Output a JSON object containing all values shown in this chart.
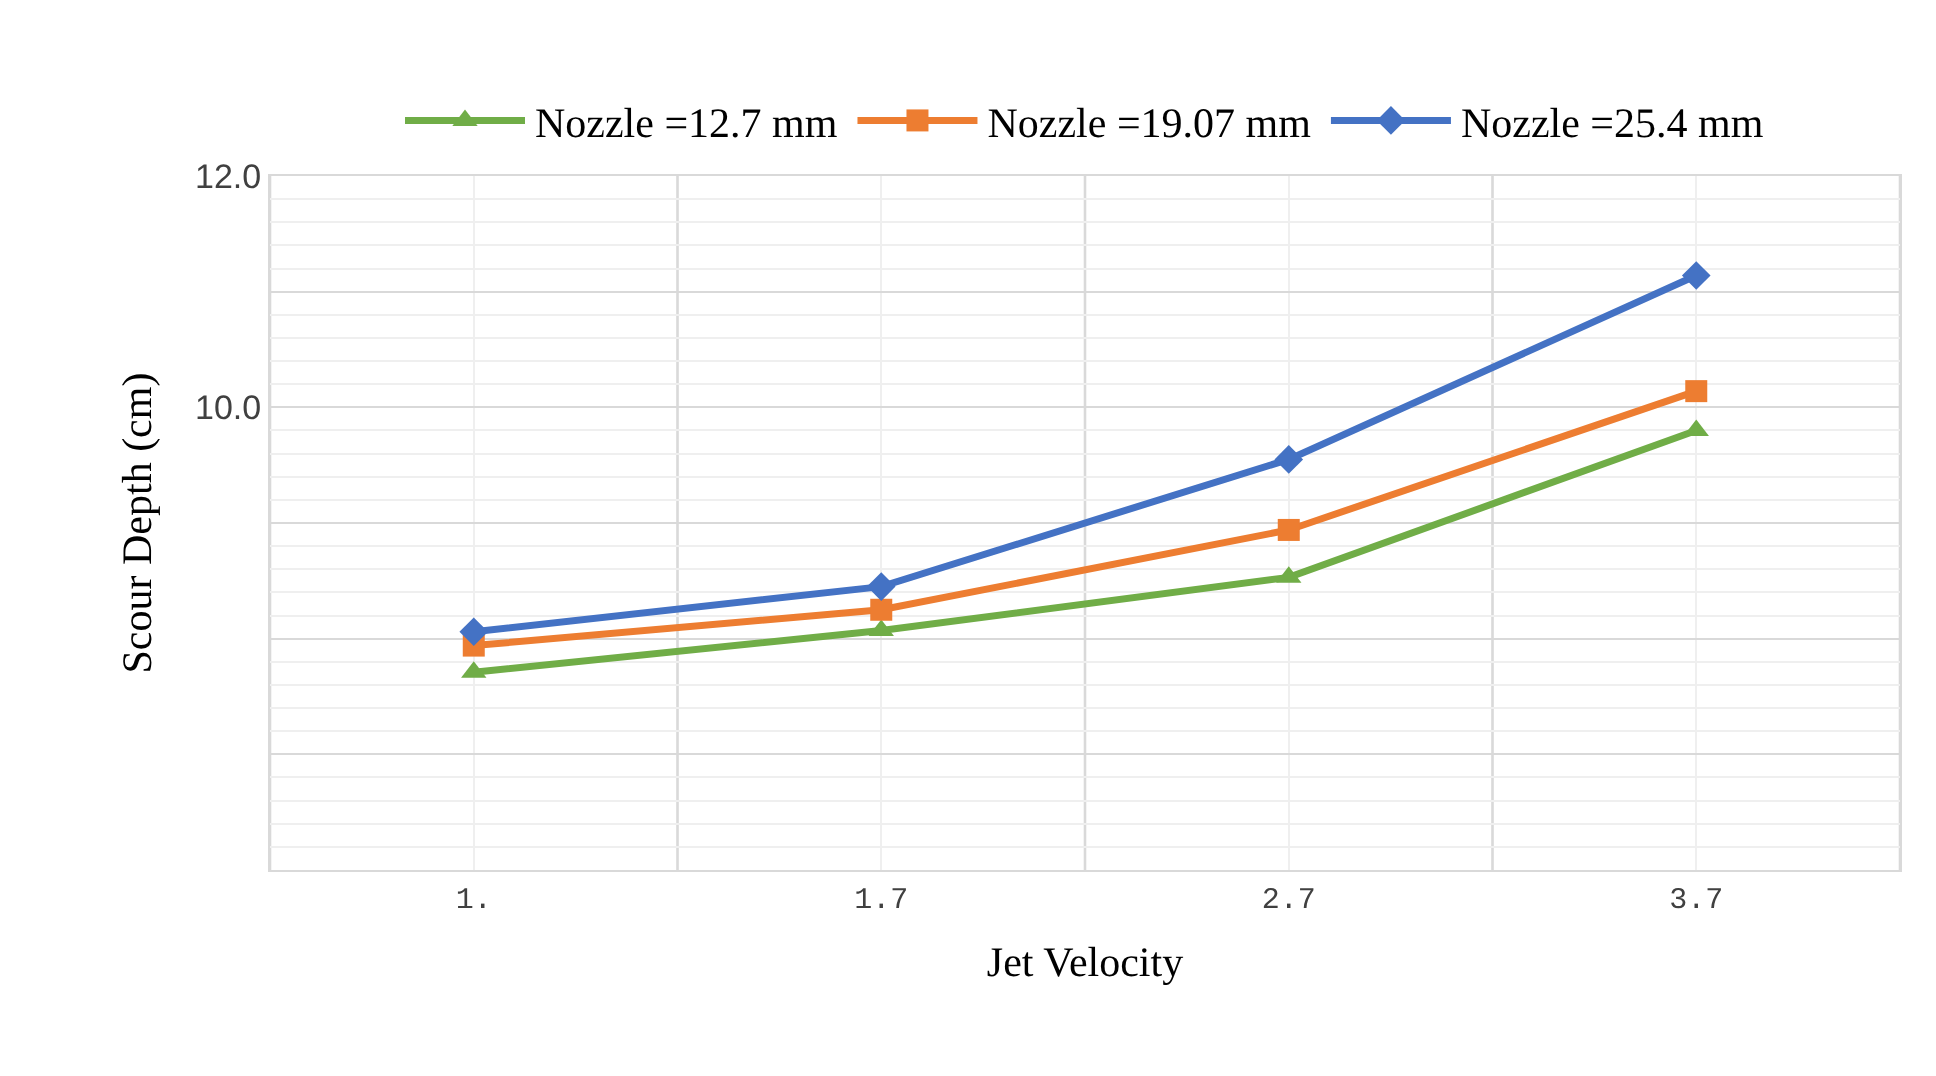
{
  "chart_data": {
    "type": "line",
    "xlabel": "Jet Velocity",
    "ylabel": "Scour Depth (cm)",
    "categories": [
      "1.",
      "1.7",
      "2.7",
      "3.7"
    ],
    "series": [
      {
        "name": "Nozzle =12.7 mm",
        "color": "#70ad47",
        "marker": "triangle",
        "values": [
          7.71,
          8.07,
          8.53,
          9.8
        ]
      },
      {
        "name": "Nozzle =19.07 mm",
        "color": "#ed7d31",
        "marker": "square",
        "values": [
          7.94,
          8.25,
          8.94,
          10.14
        ]
      },
      {
        "name": "Nozzle =25.4 mm",
        "color": "#4472c4",
        "marker": "diamond",
        "values": [
          8.06,
          8.45,
          9.55,
          11.14
        ]
      }
    ],
    "ylim": [
      6,
      12
    ],
    "yticks": [
      {
        "value": 6,
        "label": null
      },
      {
        "value": 7,
        "label": null
      },
      {
        "value": 8,
        "label": null
      },
      {
        "value": 9,
        "label": null
      },
      {
        "value": 10,
        "label": "10.0"
      },
      {
        "value": 11,
        "label": null
      },
      {
        "value": 12,
        "label": "12.0"
      }
    ],
    "grid": true,
    "legend": "top",
    "line_style": "solid"
  }
}
